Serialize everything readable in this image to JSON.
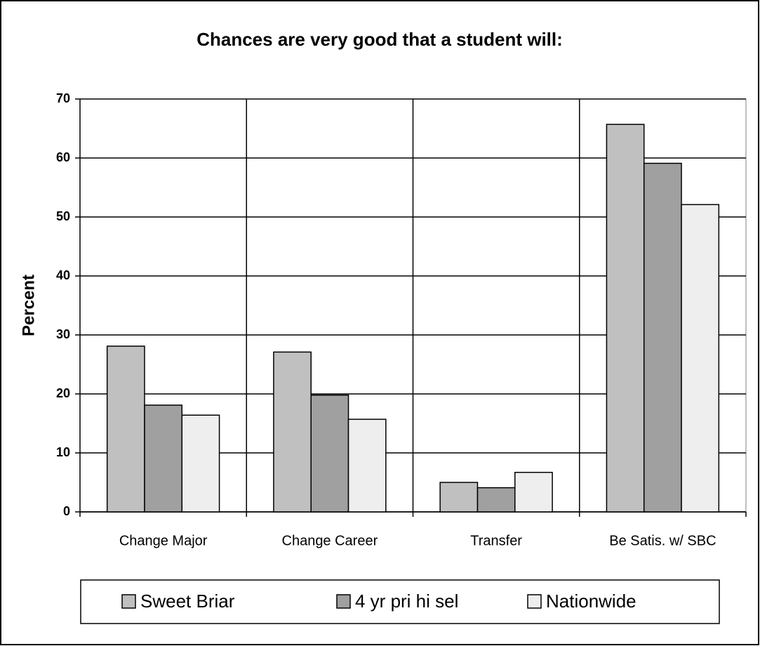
{
  "chart_data": {
    "type": "bar",
    "title": "Chances are very good that a student will:",
    "y_label": "Percent",
    "categories": [
      "Change Major",
      "Change Career",
      "Transfer",
      "Be Satis. w/ SBC"
    ],
    "series": [
      {
        "name": "Sweet Briar",
        "color": "#c0c0c0",
        "values": [
          28.1,
          27.1,
          5,
          65.7
        ]
      },
      {
        "name": "4 yr pri hi sel",
        "color": "#a0a0a0",
        "values": [
          18.1,
          19.8,
          4.1,
          59.1
        ]
      },
      {
        "name": "Nationwide",
        "color": "#eeeeee",
        "values": [
          16.4,
          15.7,
          6.7,
          52.1
        ]
      }
    ],
    "ylim": [
      0,
      70
    ],
    "yticks": [
      0,
      10,
      20,
      30,
      40,
      50,
      60,
      70
    ],
    "grid": true,
    "legend": "bottom"
  }
}
